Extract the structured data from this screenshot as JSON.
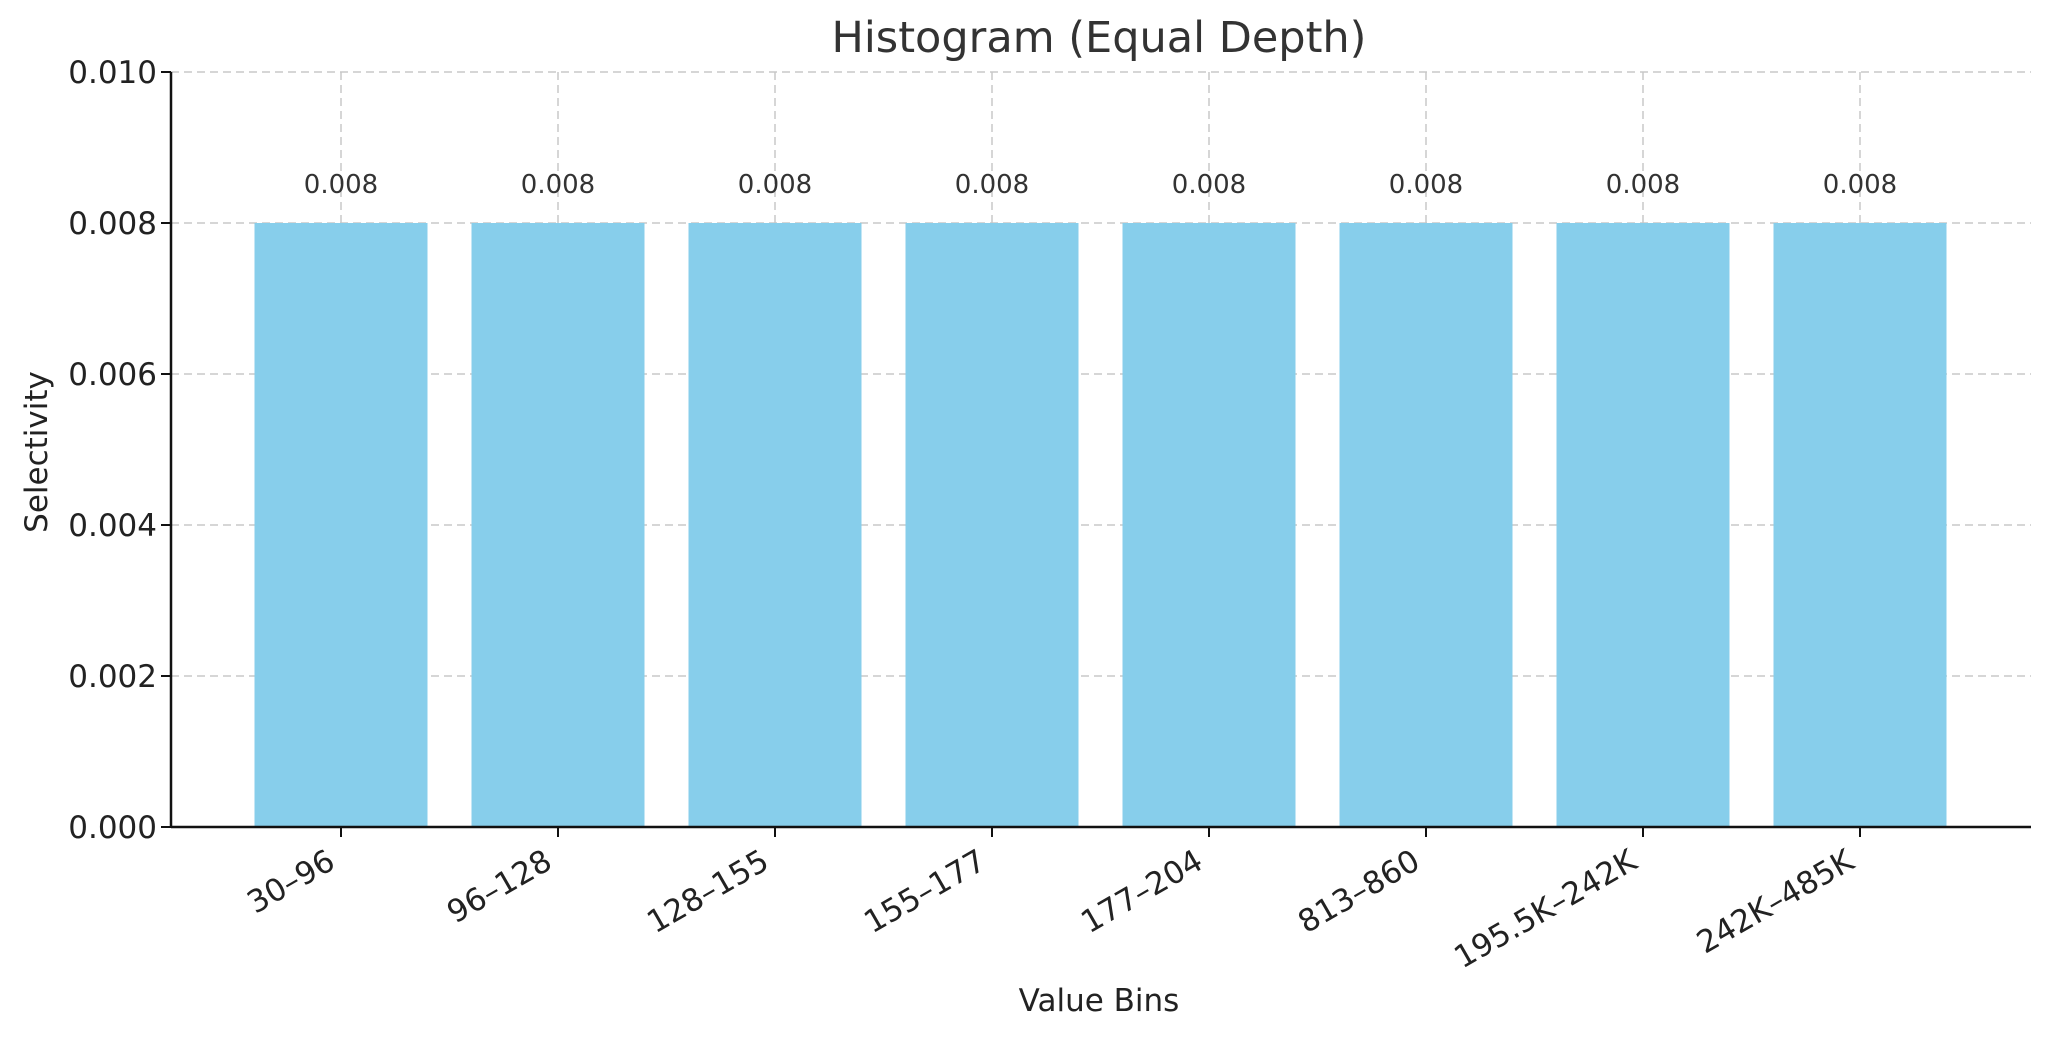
{
  "chart_data": {
    "type": "bar",
    "title": "Histogram (Equal Depth)",
    "xlabel": "Value Bins",
    "ylabel": "Selectivity",
    "categories": [
      "30–96",
      "96–128",
      "128–155",
      "155–177",
      "177–204",
      "813–860",
      "195.5K–242K",
      "242K–485K"
    ],
    "values": [
      0.008,
      0.008,
      0.008,
      0.008,
      0.008,
      0.008,
      0.008,
      0.008
    ],
    "data_labels": [
      "0.008",
      "0.008",
      "0.008",
      "0.008",
      "0.008",
      "0.008",
      "0.008",
      "0.008"
    ],
    "ylim": [
      0,
      0.01
    ],
    "yticks": [
      0,
      0.002,
      0.004,
      0.006,
      0.008,
      0.01
    ],
    "ytick_labels": [
      "0.000",
      "0.002",
      "0.004",
      "0.006",
      "0.008",
      "0.010"
    ],
    "grid": true,
    "bar_color": "#87CEEB"
  }
}
